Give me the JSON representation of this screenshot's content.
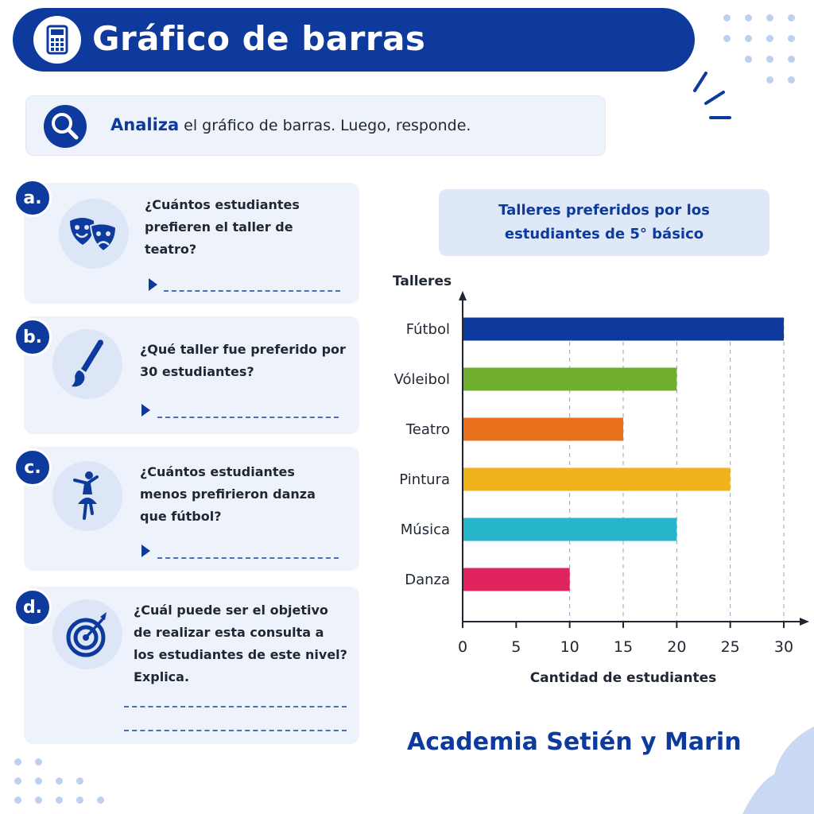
{
  "header": {
    "title": "Gráfico de barras",
    "icon": "calculator-icon"
  },
  "instruction": {
    "keyword": "Analiza",
    "text": "el gráfico de barras. Luego, responde.",
    "icon": "magnifier-icon"
  },
  "questions": [
    {
      "label": "a.",
      "icon": "theater-masks-icon",
      "text": "¿Cuántos estudiantes prefieren el taller de teatro?"
    },
    {
      "label": "b.",
      "icon": "paintbrush-icon",
      "text": "¿Qué taller fue preferido por 30 estudiantes?"
    },
    {
      "label": "c.",
      "icon": "dancer-icon",
      "text": "¿Cuántos estudiantes menos prefirieron danza que fútbol?"
    },
    {
      "label": "d.",
      "icon": "target-icon",
      "text": "¿Cuál puede ser el objetivo de realizar esta consulta a los estudiantes de este nivel? Explica."
    }
  ],
  "footer": {
    "text": "Academia Setién y Marin"
  },
  "colors": {
    "primary": "#0d3a9c",
    "card_bg": "#eef3fb",
    "icon_bg": "#dce6f6"
  },
  "chart_data": {
    "type": "bar",
    "orientation": "horizontal",
    "title": "Talleres preferidos por los estudiantes de 5° básico",
    "ylabel": "Talleres",
    "xlabel": "Cantidad de estudiantes",
    "categories": [
      "Fútbol",
      "Vóleibol",
      "Teatro",
      "Pintura",
      "Música",
      "Danza"
    ],
    "values": [
      30,
      20,
      15,
      25,
      20,
      10
    ],
    "bar_colors": [
      "#0d3a9c",
      "#6fae2e",
      "#e8701c",
      "#f0b31b",
      "#27b5c9",
      "#e0245e"
    ],
    "xticks": [
      0,
      5,
      10,
      15,
      20,
      25,
      30
    ],
    "xlim": [
      0,
      30
    ],
    "gridlines": "dashed vertical at bar ends"
  }
}
